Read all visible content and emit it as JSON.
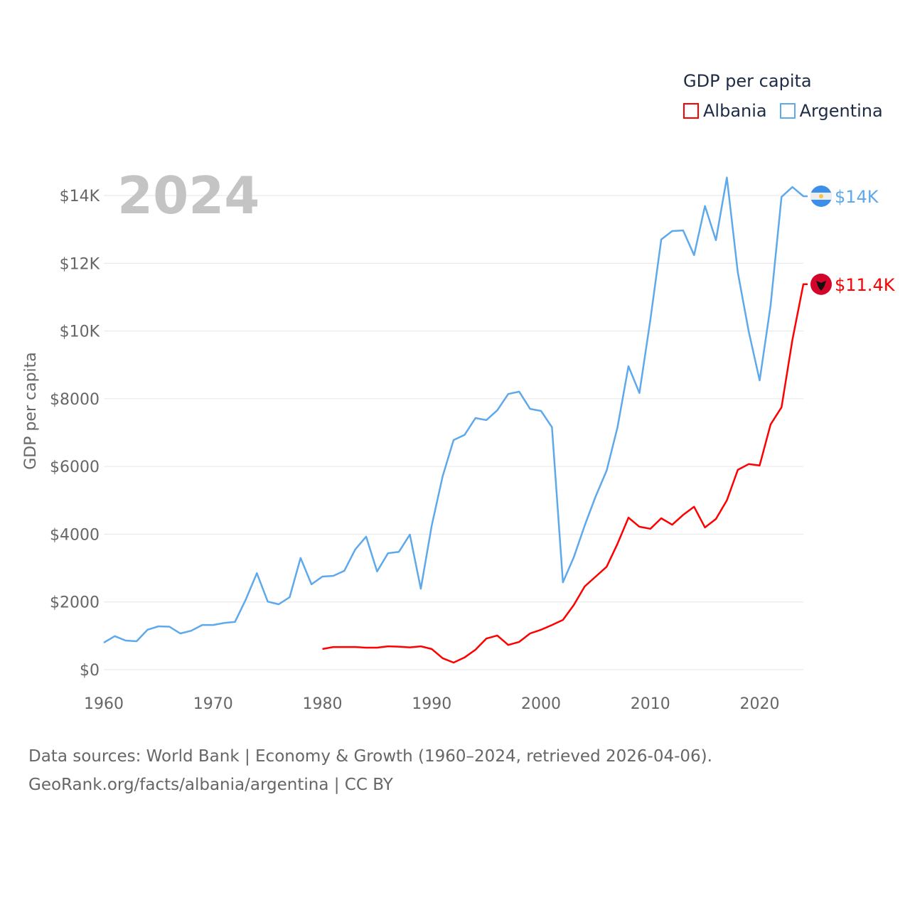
{
  "chart_data": {
    "type": "line",
    "title": "GDP per capita",
    "ylabel": "GDP per capita",
    "xlabel": "",
    "year_overlay": "2024",
    "xlim": [
      1960,
      2024
    ],
    "ylim": [
      0,
      14000
    ],
    "x_ticks": [
      "1960",
      "1970",
      "1980",
      "1990",
      "2000",
      "2010",
      "2020"
    ],
    "y_ticks": [
      {
        "value": 0,
        "label": "$0"
      },
      {
        "value": 2000,
        "label": "$2000"
      },
      {
        "value": 4000,
        "label": "$4000"
      },
      {
        "value": 6000,
        "label": "$6000"
      },
      {
        "value": 8000,
        "label": "$8000"
      },
      {
        "value": 10000,
        "label": "$10K"
      },
      {
        "value": 12000,
        "label": "$12K"
      },
      {
        "value": 14000,
        "label": "$14K"
      }
    ],
    "grid": true,
    "legend_position": "top-right",
    "series": [
      {
        "name": "Albania",
        "color": "#ff0000",
        "flag": "albania-flag",
        "end_label": "$11.4K",
        "start_year": 1980,
        "values": [
          610,
          670,
          670,
          670,
          650,
          650,
          690,
          680,
          660,
          690,
          610,
          340,
          210,
          360,
          590,
          920,
          1010,
          730,
          820,
          1070,
          1180,
          1320,
          1470,
          1910,
          2460,
          2750,
          3040,
          3720,
          4490,
          4220,
          4160,
          4470,
          4280,
          4570,
          4810,
          4200,
          4450,
          5000,
          5900,
          6070,
          6030,
          7240,
          7750,
          9740,
          11380
        ]
      },
      {
        "name": "Argentina",
        "color": "#5ea8ec",
        "flag": "argentina-flag",
        "end_label": "$14K",
        "start_year": 1960,
        "values": [
          800,
          990,
          860,
          840,
          1180,
          1280,
          1270,
          1070,
          1150,
          1320,
          1320,
          1380,
          1410,
          2080,
          2850,
          2010,
          1930,
          2140,
          3300,
          2520,
          2750,
          2770,
          2920,
          3550,
          3930,
          2900,
          3440,
          3480,
          3990,
          2390,
          4260,
          5710,
          6780,
          6930,
          7430,
          7370,
          7660,
          8140,
          8210,
          7700,
          7640,
          7160,
          2580,
          3320,
          4260,
          5120,
          5880,
          7160,
          8960,
          8170,
          10330,
          12700,
          12950,
          12970,
          12240,
          13690,
          12680,
          14530,
          11730,
          9990,
          8540,
          10750,
          13960,
          14250,
          13980
        ]
      }
    ]
  },
  "footer": {
    "line1": "Data sources: World Bank | Economy & Growth (1960–2024, retrieved 2026-04-06).",
    "line2": "GeoRank.org/facts/albania/argentina | CC BY"
  }
}
